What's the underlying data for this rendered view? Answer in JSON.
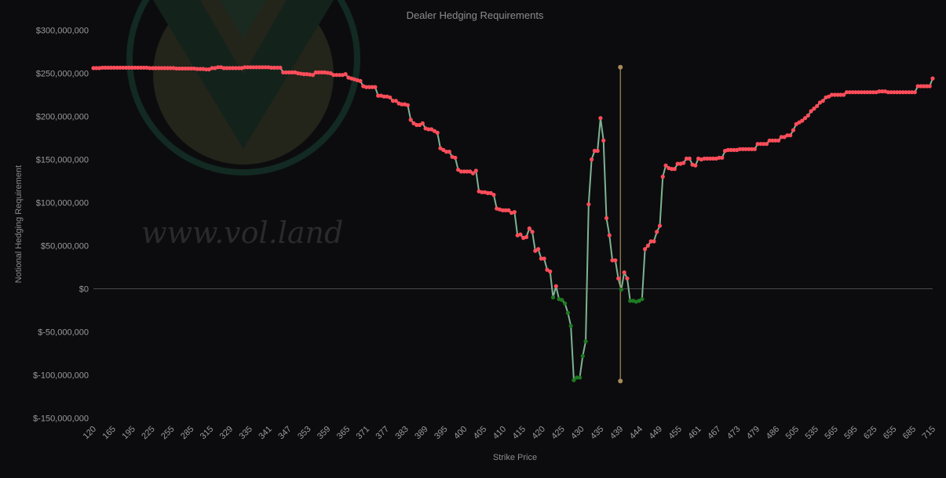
{
  "chart_data": {
    "type": "line",
    "title": "Dealer Hedging Requirements",
    "xlabel": "Strike Price",
    "ylabel": "Notional Hedging Requirement",
    "ylim": [
      -150000000,
      300000000
    ],
    "y_ticks": [
      300000000,
      250000000,
      200000000,
      150000000,
      100000000,
      50000000,
      0,
      -50000000,
      -100000000,
      -150000000
    ],
    "y_tick_labels": [
      "$300,000,000",
      "$250,000,000",
      "$200,000,000",
      "$150,000,000",
      "$100,000,000",
      "$50,000,000",
      "$0",
      "$-50,000,000",
      "$-100,000,000",
      "$-150,000,000"
    ],
    "x_tick_labels": [
      "120",
      "165",
      "195",
      "225",
      "255",
      "285",
      "315",
      "329",
      "335",
      "341",
      "347",
      "353",
      "359",
      "365",
      "371",
      "377",
      "383",
      "389",
      "395",
      "400",
      "405",
      "410",
      "415",
      "420",
      "425",
      "430",
      "435",
      "439",
      "444",
      "449",
      "455",
      "461",
      "467",
      "473",
      "479",
      "486",
      "505",
      "535",
      "565",
      "595",
      "625",
      "655",
      "685",
      "715"
    ],
    "grid": false,
    "legend": "none",
    "colors": {
      "positive": "#ff4d5a",
      "negative": "#1f7a22",
      "line": "#7fb394",
      "marker_line": "#a88b5a",
      "zero_line": "#4a4a4e"
    },
    "marker": {
      "x_index": 27,
      "y_top": 257000000,
      "y_bottom": -107000000
    },
    "series": [
      {
        "values": [
          256000000,
          256000000,
          256000000,
          256500000,
          256500000,
          256500000,
          256500000,
          256500000,
          256500000,
          256500000,
          256500000,
          256500000,
          256500000,
          256500000,
          256500000,
          256500000,
          256500000,
          256500000,
          256500000,
          256000000,
          256000000,
          256000000,
          256000000,
          256000000,
          256000000,
          256000000,
          256000000,
          256000000,
          255500000,
          255500000,
          255500000,
          255500000,
          255500000,
          255500000,
          255500000,
          255000000,
          255000000,
          255000000,
          254500000,
          254500000,
          256000000,
          256000000,
          257000000,
          257000000,
          256000000,
          256000000,
          256000000,
          256000000,
          256000000,
          256000000,
          256000000,
          257000000,
          257000000,
          257000000,
          257000000,
          257000000,
          257000000,
          257000000,
          257000000,
          257000000,
          256500000,
          256500000,
          256500000,
          256500000,
          251000000,
          251000000,
          251000000,
          251000000,
          251000000,
          250000000,
          249500000,
          249000000,
          249000000,
          248500000,
          248000000,
          251000000,
          251000000,
          251000000,
          251000000,
          250500000,
          250000000,
          248000000,
          248000000,
          248000000,
          248000000,
          249000000,
          245000000,
          244000000,
          243000000,
          242000000,
          241000000,
          235000000,
          234000000,
          234000000,
          234000000,
          234000000,
          224000000,
          224000000,
          223000000,
          223000000,
          222000000,
          218000000,
          218000000,
          215000000,
          214000000,
          214000000,
          213000000,
          196000000,
          192000000,
          190000000,
          190000000,
          192000000,
          186000000,
          185000000,
          185000000,
          183000000,
          181000000,
          163000000,
          161000000,
          159000000,
          159000000,
          153000000,
          152000000,
          138000000,
          136000000,
          136000000,
          136000000,
          136000000,
          134000000,
          137000000,
          113000000,
          112000000,
          112000000,
          111000000,
          111000000,
          109000000,
          93000000,
          92000000,
          91000000,
          91000000,
          91000000,
          88000000,
          89000000,
          62000000,
          63000000,
          59000000,
          60000000,
          70000000,
          66000000,
          44000000,
          46000000,
          35000000,
          35000000,
          22000000,
          20000000,
          -10000000,
          3000000,
          -12000000,
          -13000000,
          -17000000,
          -28000000,
          -43000000,
          -106000000,
          -103000000,
          -103000000,
          -78000000,
          -61000000,
          98000000,
          150000000,
          160000000,
          160000000,
          198000000,
          172000000,
          82000000,
          62000000,
          33000000,
          33000000,
          12000000,
          -1000000,
          19000000,
          12000000,
          -14000000,
          -14000000,
          -15000000,
          -14000000,
          -12000000,
          46000000,
          50000000,
          55000000,
          55000000,
          66000000,
          73000000,
          130000000,
          143000000,
          140000000,
          139000000,
          139000000,
          145000000,
          145000000,
          146000000,
          151000000,
          151000000,
          144000000,
          143000000,
          151000000,
          150000000,
          151000000,
          151000000,
          151000000,
          151000000,
          151000000,
          152000000,
          152000000,
          160000000,
          161000000,
          161000000,
          161000000,
          161000000,
          162000000,
          162000000,
          162000000,
          162000000,
          162000000,
          162000000,
          168000000,
          168000000,
          168000000,
          168000000,
          172000000,
          172000000,
          172000000,
          172000000,
          176000000,
          176000000,
          178000000,
          178000000,
          184000000,
          191000000,
          193000000,
          195000000,
          198000000,
          201000000,
          206000000,
          209000000,
          212000000,
          216000000,
          218000000,
          222000000,
          223000000,
          225000000,
          225000000,
          225000000,
          225000000,
          225000000,
          228000000,
          228000000,
          228000000,
          228000000,
          228000000,
          228000000,
          228000000,
          228000000,
          228000000,
          228000000,
          228000000,
          229000000,
          229000000,
          229000000,
          228000000,
          228000000,
          228000000,
          228000000,
          228000000,
          228000000,
          228000000,
          228000000,
          228000000,
          228000000,
          235000000,
          235000000,
          235000000,
          235000000,
          235000000,
          244000000
        ]
      }
    ]
  }
}
